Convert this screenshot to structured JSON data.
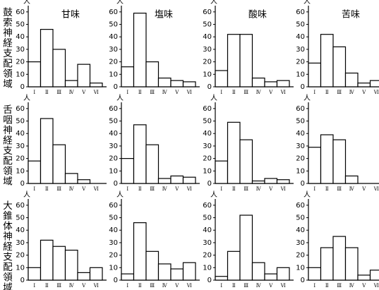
{
  "row_labels": [
    "鼓索神経支配領域",
    "舌咽神経支配領域",
    "大錐体神経支配領域"
  ],
  "chart_data": [
    {
      "type": "bar",
      "title": "甘味",
      "ylabel": "人",
      "categories": [
        "Ⅰ",
        "Ⅱ",
        "Ⅲ",
        "Ⅳ",
        "Ⅴ",
        "Ⅵ"
      ],
      "values": [
        20,
        46,
        30,
        5,
        18,
        3
      ],
      "color": "#ffffff",
      "ylim": [
        0,
        65
      ],
      "yticks": [
        0,
        10,
        20,
        30,
        40,
        50,
        60
      ]
    },
    {
      "type": "bar",
      "title": "塩味",
      "ylabel": "人",
      "categories": [
        "Ⅰ",
        "Ⅱ",
        "Ⅲ",
        "Ⅳ",
        "Ⅴ",
        "Ⅵ"
      ],
      "values": [
        16,
        59,
        20,
        7,
        5,
        4
      ],
      "color": "#ffffff",
      "ylim": [
        0,
        65
      ],
      "yticks": [
        0,
        10,
        20,
        30,
        40,
        50,
        60
      ]
    },
    {
      "type": "bar",
      "title": "酸味",
      "ylabel": "人",
      "categories": [
        "Ⅰ",
        "Ⅱ",
        "Ⅲ",
        "Ⅳ",
        "Ⅴ",
        "Ⅵ"
      ],
      "values": [
        13,
        42,
        42,
        7,
        4,
        5
      ],
      "color": "#ffffff",
      "ylim": [
        0,
        65
      ],
      "yticks": [
        0,
        10,
        20,
        30,
        40,
        50,
        60
      ]
    },
    {
      "type": "bar",
      "title": "苦味",
      "ylabel": "人",
      "categories": [
        "Ⅰ",
        "Ⅱ",
        "Ⅲ",
        "Ⅳ",
        "Ⅴ",
        "Ⅵ"
      ],
      "values": [
        19,
        42,
        32,
        11,
        3,
        5
      ],
      "color": "#ffffff",
      "ylim": [
        0,
        65
      ],
      "yticks": [
        0,
        10,
        20,
        30,
        40,
        50,
        60
      ]
    },
    {
      "type": "bar",
      "ylabel": "人",
      "categories": [
        "Ⅰ",
        "Ⅱ",
        "Ⅲ",
        "Ⅳ",
        "Ⅴ",
        "Ⅵ"
      ],
      "values": [
        18,
        52,
        31,
        8,
        3,
        0
      ],
      "color": "#ffffff",
      "ylim": [
        0,
        65
      ],
      "yticks": [
        0,
        10,
        20,
        30,
        40,
        50,
        60
      ]
    },
    {
      "type": "bar",
      "ylabel": "人",
      "categories": [
        "Ⅰ",
        "Ⅱ",
        "Ⅲ",
        "Ⅳ",
        "Ⅴ",
        "Ⅵ"
      ],
      "values": [
        20,
        47,
        31,
        4,
        6,
        5
      ],
      "color": "#ffffff",
      "ylim": [
        0,
        65
      ],
      "yticks": [
        0,
        10,
        20,
        30,
        40,
        50,
        60
      ]
    },
    {
      "type": "bar",
      "ylabel": "人",
      "categories": [
        "Ⅰ",
        "Ⅱ",
        "Ⅲ",
        "Ⅳ",
        "Ⅴ",
        "Ⅵ"
      ],
      "values": [
        18,
        49,
        35,
        2,
        4,
        3
      ],
      "color": "#ffffff",
      "ylim": [
        0,
        65
      ],
      "yticks": [
        0,
        10,
        20,
        30,
        40,
        50,
        60
      ]
    },
    {
      "type": "bar",
      "ylabel": "人",
      "categories": [
        "Ⅰ",
        "Ⅱ",
        "Ⅲ",
        "Ⅳ",
        "Ⅴ",
        "Ⅵ"
      ],
      "values": [
        29,
        39,
        35,
        6,
        0,
        0
      ],
      "color": "#ffffff",
      "ylim": [
        0,
        65
      ],
      "yticks": [
        0,
        10,
        20,
        30,
        40,
        50,
        60
      ]
    },
    {
      "type": "bar",
      "ylabel": "人",
      "categories": [
        "Ⅰ",
        "Ⅱ",
        "Ⅲ",
        "Ⅳ",
        "Ⅴ",
        "Ⅵ"
      ],
      "values": [
        10,
        32,
        27,
        24,
        6,
        10
      ],
      "color": "#ffffff",
      "ylim": [
        0,
        65
      ],
      "yticks": [
        0,
        10,
        20,
        30,
        40,
        50,
        60
      ]
    },
    {
      "type": "bar",
      "ylabel": "人",
      "categories": [
        "Ⅰ",
        "Ⅱ",
        "Ⅲ",
        "Ⅳ",
        "Ⅴ",
        "Ⅵ"
      ],
      "values": [
        5,
        46,
        23,
        13,
        9,
        14
      ],
      "color": "#ffffff",
      "ylim": [
        0,
        65
      ],
      "yticks": [
        0,
        10,
        20,
        30,
        40,
        50,
        60
      ]
    },
    {
      "type": "bar",
      "ylabel": "人",
      "categories": [
        "Ⅰ",
        "Ⅱ",
        "Ⅲ",
        "Ⅳ",
        "Ⅴ",
        "Ⅵ"
      ],
      "values": [
        3,
        23,
        52,
        14,
        5,
        10
      ],
      "color": "#ffffff",
      "ylim": [
        0,
        65
      ],
      "yticks": [
        0,
        10,
        20,
        30,
        40,
        50,
        60
      ]
    },
    {
      "type": "bar",
      "ylabel": "人",
      "categories": [
        "Ⅰ",
        "Ⅱ",
        "Ⅲ",
        "Ⅳ",
        "Ⅴ",
        "Ⅵ"
      ],
      "values": [
        10,
        26,
        35,
        26,
        4,
        8
      ],
      "color": "#ffffff",
      "ylim": [
        0,
        65
      ],
      "yticks": [
        0,
        10,
        20,
        30,
        40,
        50,
        60
      ]
    }
  ]
}
